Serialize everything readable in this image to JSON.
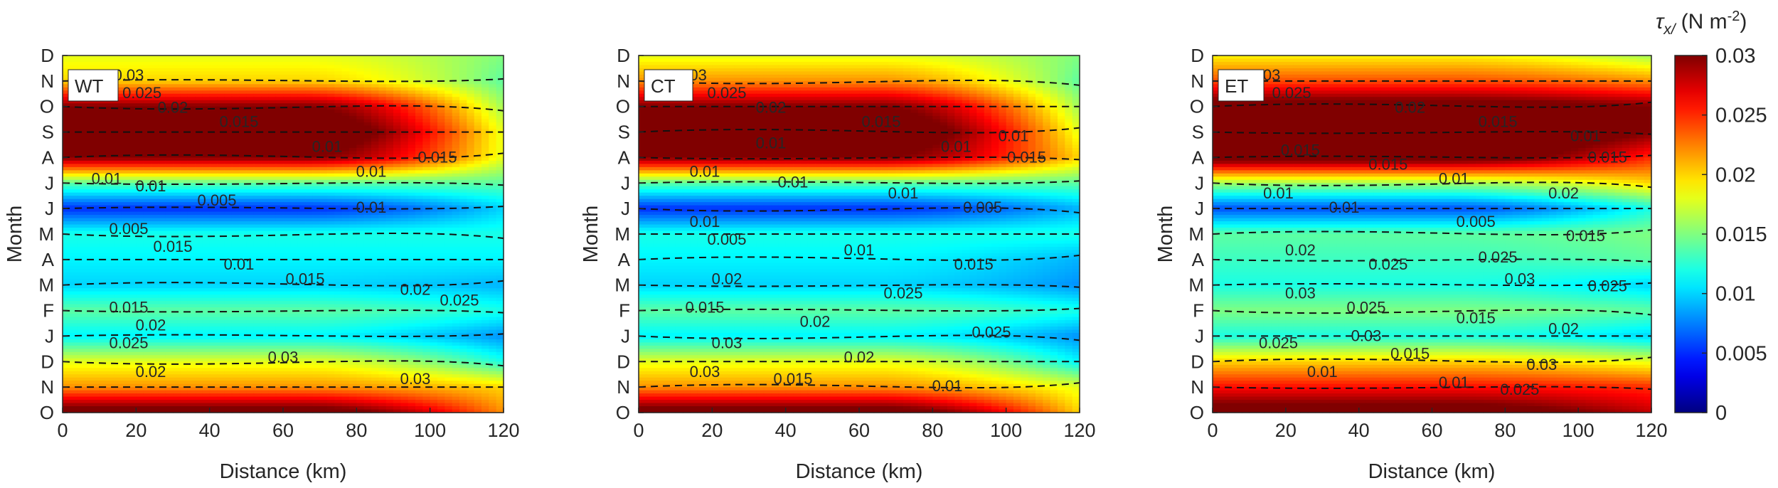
{
  "chart_data": {
    "type": "heatmap",
    "x_label": "Distance (km)",
    "y_label": "Month",
    "x_ticks": [
      0,
      20,
      40,
      60,
      80,
      100,
      120
    ],
    "y_ticks": [
      "O",
      "N",
      "D",
      "J",
      "F",
      "M",
      "A",
      "M",
      "J",
      "J",
      "A",
      "S",
      "O",
      "N",
      "D"
    ],
    "xlim": [
      0,
      120
    ],
    "colorbar": {
      "label_symbol": "τ",
      "label_sub": "x/",
      "label_units": "(N m",
      "label_units_exp": "-2",
      "label_close": ")",
      "range": [
        0,
        0.03
      ],
      "ticks": [
        "0",
        "0.005",
        "0.01",
        "0.015",
        "0.02",
        "0.025",
        "0.03"
      ],
      "colormap": "jet"
    },
    "panels": [
      {
        "name": "WT",
        "month_profile": [
          0.032,
          0.022,
          0.018,
          0.011,
          0.014,
          0.01,
          0.011,
          0.012,
          0.005,
          0.014,
          0.03,
          0.033,
          0.03,
          0.02,
          0.018
        ],
        "east_profile": [
          0.022,
          0.02,
          0.012,
          0.008,
          0.012,
          0.009,
          0.011,
          0.012,
          0.01,
          0.014,
          0.018,
          0.018,
          0.016,
          0.014,
          0.015
        ],
        "contour_labels": [
          "0.03",
          "0.025",
          "0.02",
          "0.015",
          "0.01",
          "0.015",
          "0.01",
          "0.01",
          "0.01",
          "0.005",
          "0.01",
          "0.005",
          "0.015",
          "0.01",
          "0.015",
          "0.02",
          "0.025",
          "0.015",
          "0.02",
          "0.025",
          "0.03",
          "0.02",
          "0.03"
        ]
      },
      {
        "name": "CT",
        "month_profile": [
          0.032,
          0.022,
          0.018,
          0.011,
          0.014,
          0.01,
          0.011,
          0.012,
          0.005,
          0.014,
          0.03,
          0.033,
          0.03,
          0.022,
          0.018
        ],
        "east_profile": [
          0.02,
          0.018,
          0.011,
          0.008,
          0.012,
          0.008,
          0.009,
          0.012,
          0.009,
          0.014,
          0.02,
          0.018,
          0.016,
          0.014,
          0.015
        ],
        "contour_labels": [
          "0.03",
          "0.025",
          "0.02",
          "0.015",
          "0.01",
          "0.015",
          "0.01",
          "0.01",
          "0.01",
          "0.005",
          "0.01",
          "0.005",
          "0.01",
          "0.015",
          "0.02",
          "0.025",
          "0.015",
          "0.02",
          "0.025",
          "0.03",
          "0.02",
          "0.03",
          "0.015",
          "0.01",
          "0.01",
          "0.01"
        ]
      },
      {
        "name": "ET",
        "month_profile": [
          0.032,
          0.026,
          0.02,
          0.012,
          0.015,
          0.012,
          0.013,
          0.014,
          0.006,
          0.016,
          0.032,
          0.034,
          0.032,
          0.024,
          0.019
        ],
        "east_profile": [
          0.028,
          0.025,
          0.018,
          0.01,
          0.014,
          0.01,
          0.014,
          0.015,
          0.012,
          0.02,
          0.025,
          0.03,
          0.03,
          0.022,
          0.016
        ],
        "contour_labels": [
          "0.03",
          "0.025",
          "0.02",
          "0.015",
          "0.01",
          "0.015",
          "0.015",
          "0.01",
          "0.01",
          "0.01",
          "0.005",
          "0.015",
          "0.02",
          "0.025",
          "0.03",
          "0.025",
          "0.03",
          "0.025",
          "0.015",
          "0.02",
          "0.025",
          "0.015",
          "0.03",
          "0.01",
          "0.01",
          "0.015",
          "0.02",
          "0.025",
          "0.03",
          "0.025"
        ]
      }
    ]
  }
}
